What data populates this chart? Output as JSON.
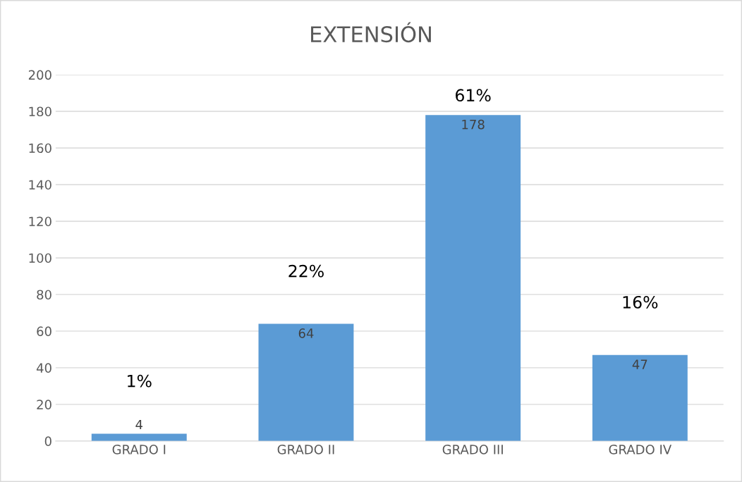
{
  "chart_data": {
    "type": "bar",
    "title": "EXTENSIÓN",
    "categories": [
      "GRADO I",
      "GRADO II",
      "GRADO III",
      "GRADO IV"
    ],
    "values": [
      4,
      64,
      178,
      47
    ],
    "color": "#5b9bd5",
    "ylim": [
      0,
      200
    ],
    "yticks": [
      0,
      20,
      40,
      60,
      80,
      100,
      120,
      140,
      160,
      180,
      200
    ],
    "grid": "y",
    "data_labels": true,
    "legend": false,
    "annotations": [
      "1%",
      "22%",
      "61%",
      "16%"
    ]
  }
}
